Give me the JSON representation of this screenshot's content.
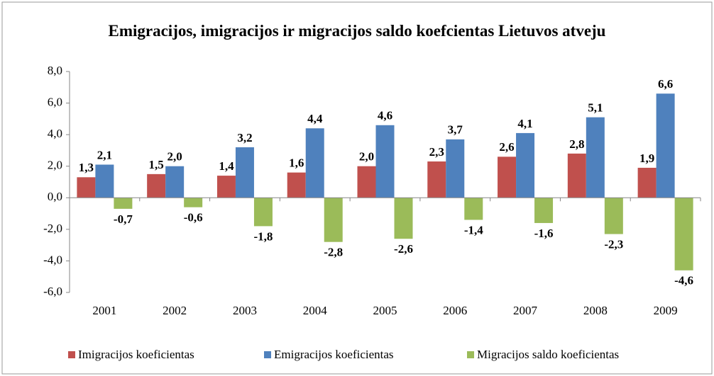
{
  "chart_data": {
    "type": "bar",
    "title": "Emigracijos, imigracijos ir migracijos saldo koefcientas Lietuvos atveju",
    "categories": [
      "2001",
      "2002",
      "2003",
      "2004",
      "2005",
      "2006",
      "2007",
      "2008",
      "2009"
    ],
    "series": [
      {
        "name": "Imigracijos koeficientas",
        "color": "#c0504d",
        "values": [
          1.3,
          1.5,
          1.4,
          1.6,
          2.0,
          2.3,
          2.6,
          2.8,
          1.9
        ],
        "value_labels": [
          "1,3",
          "1,5",
          "1,4",
          "1,6",
          "2,0",
          "2,3",
          "2,6",
          "2,8",
          "1,9"
        ]
      },
      {
        "name": "Emigracijos koeficientas",
        "color": "#4f81bd",
        "values": [
          2.1,
          2.0,
          3.2,
          4.4,
          4.6,
          3.7,
          4.1,
          5.1,
          6.6
        ],
        "value_labels": [
          "2,1",
          "2,0",
          "3,2",
          "4,4",
          "4,6",
          "3,7",
          "4,1",
          "5,1",
          "6,6"
        ]
      },
      {
        "name": "Migracijos saldo koeficientas",
        "color": "#9bbb59",
        "values": [
          -0.7,
          -0.6,
          -1.8,
          -2.8,
          -2.6,
          -1.4,
          -1.6,
          -2.3,
          -4.6
        ],
        "value_labels": [
          "-0,7",
          "-0,6",
          "-1,8",
          "-2,8",
          "-2,6",
          "-1,4",
          "-1,6",
          "-2,3",
          "-4,6"
        ]
      }
    ],
    "ylim": [
      -6,
      8
    ],
    "yticks": [
      {
        "value": -6,
        "label": "-6,0"
      },
      {
        "value": -4,
        "label": "-4,0"
      },
      {
        "value": -2,
        "label": "-2,0"
      },
      {
        "value": 0,
        "label": "0,0"
      },
      {
        "value": 2,
        "label": "2,0"
      },
      {
        "value": 4,
        "label": "4,0"
      },
      {
        "value": 6,
        "label": "6,0"
      },
      {
        "value": 8,
        "label": "8,0"
      }
    ],
    "grid": false,
    "legend": "bottom"
  }
}
